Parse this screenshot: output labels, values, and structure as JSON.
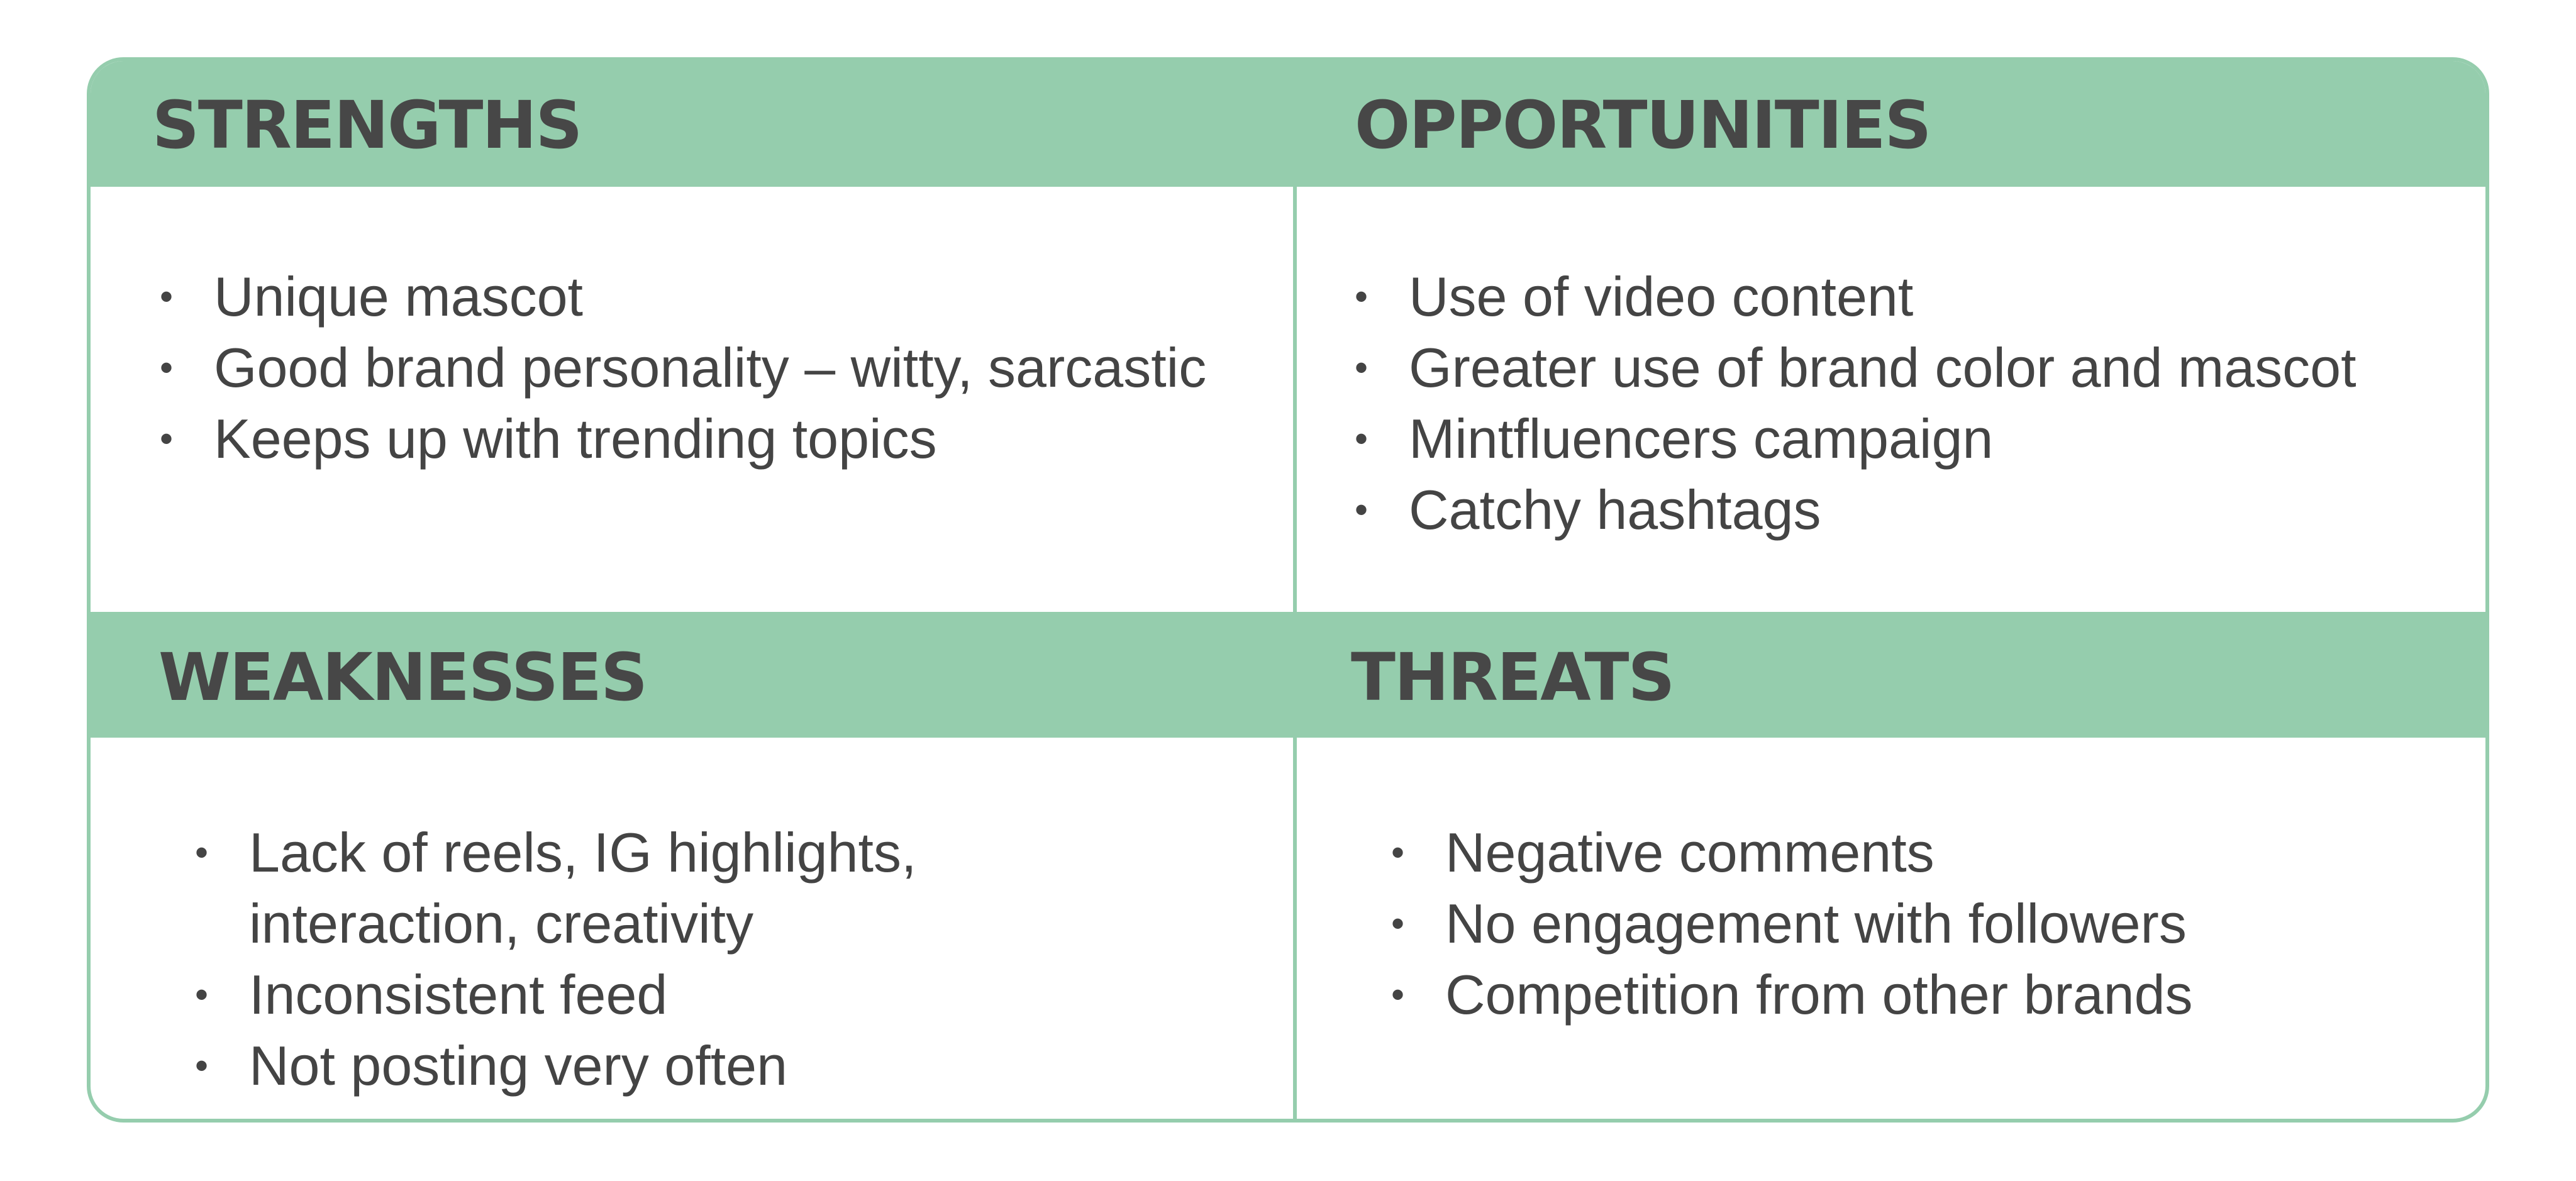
{
  "quadrants": {
    "strengths": {
      "title": "STRENGTHS",
      "items": [
        "Unique mascot",
        "Good brand personality – witty, sarcastic",
        "Keeps up with trending topics"
      ]
    },
    "opportunities": {
      "title": "OPPORTUNITIES",
      "items": [
        "Use of video content",
        "Greater use of brand color and mascot",
        "Mintfluencers campaign",
        "Catchy hashtags"
      ]
    },
    "weaknesses": {
      "title": "WEAKNESSES",
      "items": [
        "Lack of reels, IG highlights, interaction, creativity",
        "Inconsistent feed",
        "Not posting very often"
      ]
    },
    "threats": {
      "title": "THREATS",
      "items": [
        "Negative comments",
        "No engagement with followers",
        "Competition from other brands"
      ]
    }
  },
  "colors": {
    "header_band": "#95cdad",
    "text": "#444444",
    "background": "#ffffff"
  }
}
